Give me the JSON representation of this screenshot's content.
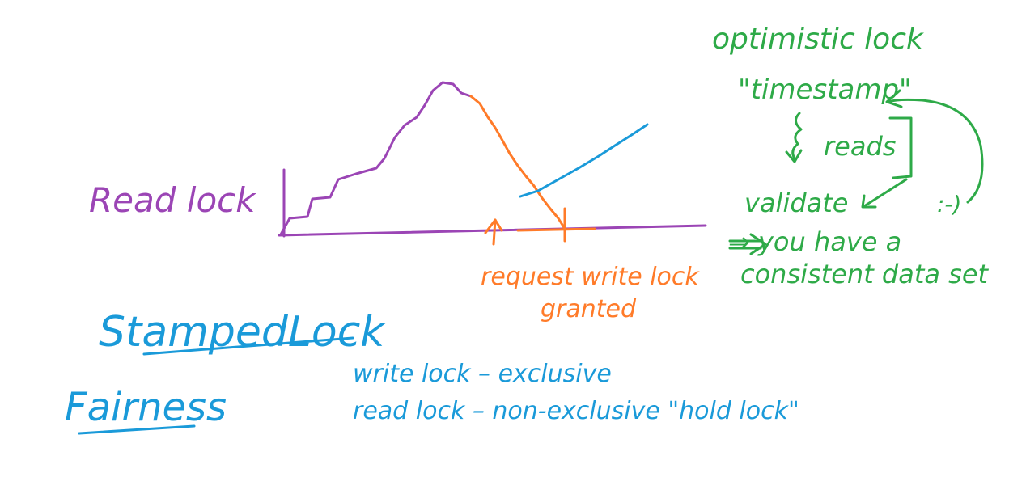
{
  "colors": {
    "purple": "#9b45b5",
    "orange": "#ff7b29",
    "green": "#2eaa48",
    "blue": "#1a9ad9",
    "background": "#ffffff"
  },
  "labels": {
    "read_lock": "Read lock",
    "request_write_lock": "request write lock",
    "granted": "granted",
    "optimistic_lock": "optimistic lock",
    "timestamp": "\"timestamp\"",
    "reads": "reads",
    "validate": "validate",
    "consistent_1": "⇒ you have a",
    "consistent_2": "consistent data set",
    "smiley": ":-)",
    "stamped_lock": "StampedLock",
    "fairness": "Fairness",
    "write_lock_line": "write lock  –  exclusive",
    "read_lock_line": "read lock  –  non-exclusive \"hold lock\""
  }
}
